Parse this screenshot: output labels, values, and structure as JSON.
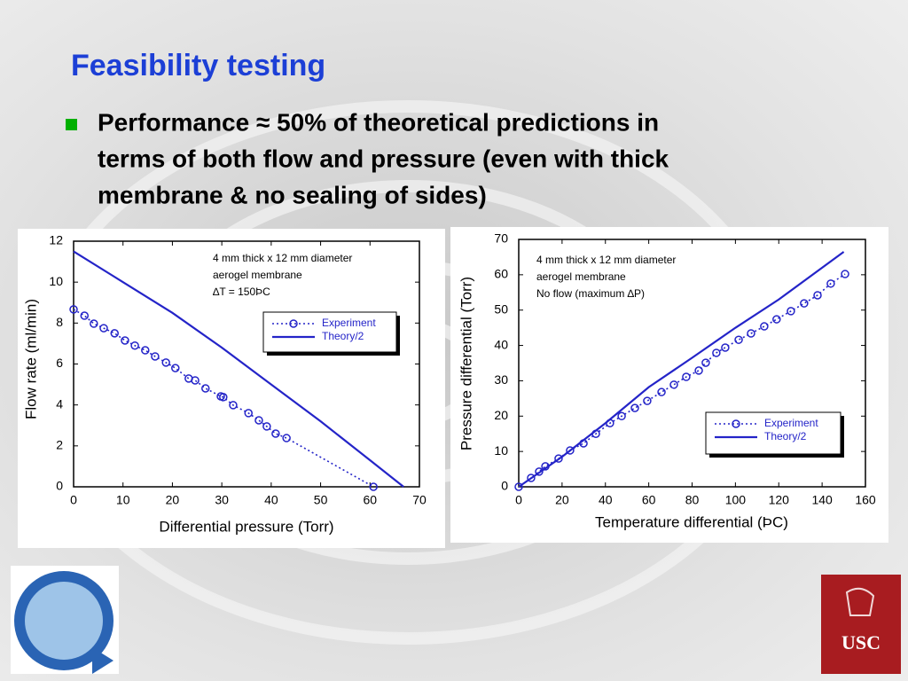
{
  "title": "Feasibility testing",
  "bullet": [
    "Performance ≈ 50% of theoretical predictions in",
    "terms of both flow and pressure (even with thick",
    "membrane & no sealing of sides)"
  ],
  "logos": {
    "usc": "USC"
  },
  "chart_data": [
    {
      "type": "line",
      "xlabel": "Differential pressure (Torr)",
      "ylabel": "Flow rate (ml/min)",
      "annotation": [
        "4 mm thick x 12 mm diameter",
        "aerogel membrane",
        "∆T = 150ÞC"
      ],
      "xlim": [
        0,
        70
      ],
      "ylim": [
        0,
        12
      ],
      "xticks": [
        0,
        10,
        20,
        30,
        40,
        50,
        60,
        70
      ],
      "yticks": [
        0,
        2,
        4,
        6,
        8,
        10,
        12
      ],
      "series": [
        {
          "name": "Experiment",
          "color": "#2424c8",
          "linestyle": "dotted",
          "marker": "o",
          "x": [
            0,
            2.2,
            4.1,
            6.1,
            8.3,
            10.4,
            12.4,
            14.5,
            16.5,
            18.7,
            20.6,
            23.3,
            24.6,
            26.7,
            29.8,
            30.3,
            32.3,
            35.4,
            37.5,
            39.1,
            40.9,
            43.1,
            60.7
          ],
          "values": [
            8.67,
            8.36,
            7.97,
            7.75,
            7.5,
            7.15,
            6.9,
            6.67,
            6.37,
            6.07,
            5.8,
            5.29,
            5.2,
            4.81,
            4.42,
            4.38,
            3.99,
            3.6,
            3.25,
            2.95,
            2.6,
            2.38,
            0
          ]
        },
        {
          "name": "Theory/2",
          "color": "#2424c8",
          "linestyle": "solid",
          "marker": "none",
          "x": [
            0,
            10,
            20,
            30,
            40,
            50,
            60,
            66.8
          ],
          "values": [
            11.5,
            10.0,
            8.5,
            6.8,
            5.0,
            3.2,
            1.3,
            0
          ]
        }
      ]
    },
    {
      "type": "line",
      "xlabel": "Temperature differential (ÞC)",
      "ylabel": "Pressure differential (Torr)",
      "annotation": [
        "4 mm thick x 12 mm diameter",
        "aerogel membrane",
        "No flow (maximum ∆P)"
      ],
      "xlim": [
        0,
        160
      ],
      "ylim": [
        0,
        70
      ],
      "xticks": [
        0,
        20,
        40,
        60,
        80,
        100,
        120,
        140,
        160
      ],
      "yticks": [
        0,
        10,
        20,
        30,
        40,
        50,
        60,
        70
      ],
      "series": [
        {
          "name": "Experiment",
          "color": "#2424c8",
          "linestyle": "dotted",
          "marker": "o",
          "x": [
            0,
            5.7,
            9.4,
            12.3,
            18.4,
            23.7,
            29.9,
            35.6,
            42.1,
            47.5,
            53.6,
            59.3,
            65.9,
            71.6,
            77.3,
            83.1,
            86.3,
            91.2,
            95.3,
            101.5,
            107.2,
            113.3,
            119,
            125.6,
            131.7,
            137.9,
            144,
            150.6
          ],
          "values": [
            0,
            2.5,
            4.3,
            5.8,
            8,
            10.3,
            12.3,
            15,
            18,
            20,
            22.3,
            24.3,
            26.8,
            28.9,
            31.1,
            32.9,
            35.1,
            37.9,
            39.4,
            41.6,
            43.4,
            45.4,
            47.4,
            49.7,
            51.9,
            54.2,
            57.5,
            60.2
          ]
        },
        {
          "name": "Theory/2",
          "color": "#2424c8",
          "linestyle": "solid",
          "marker": "none",
          "x": [
            0,
            20,
            40,
            60,
            80,
            100,
            120,
            150
          ],
          "values": [
            0,
            8.5,
            18,
            28.2,
            36.5,
            45,
            53,
            66.5
          ]
        }
      ]
    }
  ]
}
